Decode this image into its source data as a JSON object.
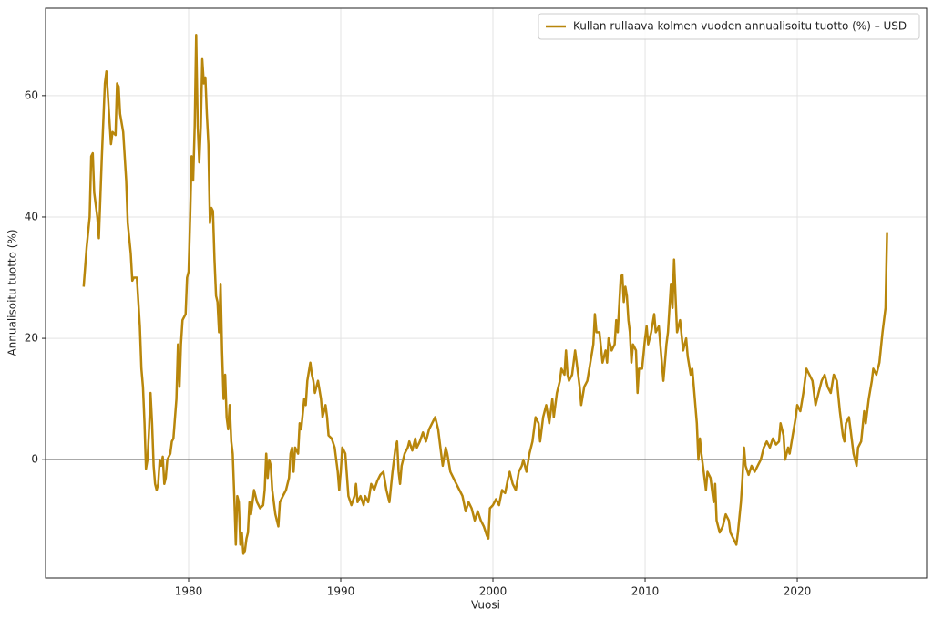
{
  "chart_data": {
    "type": "line",
    "xlabel": "Vuosi",
    "ylabel": "Annualisoitu tuotto (%)",
    "xlim": [
      1970.6,
      2028.5
    ],
    "ylim": [
      -19.5,
      74.4
    ],
    "xticks": [
      1980,
      1990,
      2000,
      2010,
      2020
    ],
    "yticks": [
      0,
      20,
      40,
      60
    ],
    "grid": true,
    "legend": "upper right",
    "hline": 0,
    "x": [
      1973.1,
      1973.3,
      1973.5,
      1973.6,
      1973.7,
      1973.8,
      1974.0,
      1974.1,
      1974.3,
      1974.5,
      1974.6,
      1974.8,
      1974.9,
      1975.0,
      1975.2,
      1975.3,
      1975.4,
      1975.5,
      1975.7,
      1975.9,
      1976.0,
      1976.2,
      1976.3,
      1976.4,
      1976.6,
      1976.8,
      1976.9,
      1977.0,
      1977.1,
      1977.2,
      1977.3,
      1977.4,
      1977.5,
      1977.6,
      1977.7,
      1977.8,
      1977.9,
      1978.0,
      1978.1,
      1978.2,
      1978.3,
      1978.4,
      1978.5,
      1978.6,
      1978.8,
      1978.9,
      1979.0,
      1979.2,
      1979.3,
      1979.4,
      1979.5,
      1979.6,
      1979.7,
      1979.8,
      1979.9,
      1980.0,
      1980.1,
      1980.2,
      1980.3,
      1980.4,
      1980.5,
      1980.6,
      1980.7,
      1980.8,
      1980.9,
      1981.0,
      1981.1,
      1981.2,
      1981.3,
      1981.4,
      1981.5,
      1981.6,
      1981.7,
      1981.8,
      1981.9,
      1982.0,
      1982.1,
      1982.2,
      1982.3,
      1982.4,
      1982.5,
      1982.6,
      1982.7,
      1982.8,
      1982.9,
      1983.0,
      1983.1,
      1983.2,
      1983.3,
      1983.4,
      1983.5,
      1983.6,
      1983.7,
      1983.8,
      1983.9,
      1984.0,
      1984.1,
      1984.3,
      1984.5,
      1984.7,
      1984.9,
      1985.0,
      1985.1,
      1985.2,
      1985.3,
      1985.4,
      1985.5,
      1985.7,
      1985.9,
      1986.0,
      1986.2,
      1986.4,
      1986.6,
      1986.7,
      1986.8,
      1986.9,
      1987.0,
      1987.2,
      1987.3,
      1987.4,
      1987.6,
      1987.7,
      1987.8,
      1988.0,
      1988.1,
      1988.2,
      1988.3,
      1988.5,
      1988.7,
      1988.8,
      1989.0,
      1989.1,
      1989.2,
      1989.4,
      1989.6,
      1989.8,
      1989.9,
      1990.0,
      1990.1,
      1990.3,
      1990.5,
      1990.7,
      1990.9,
      1991.0,
      1991.1,
      1991.3,
      1991.5,
      1991.6,
      1991.8,
      1992.0,
      1992.2,
      1992.4,
      1992.6,
      1992.8,
      1993.0,
      1993.2,
      1993.4,
      1993.6,
      1993.7,
      1993.8,
      1993.9,
      1994.0,
      1994.2,
      1994.4,
      1994.5,
      1994.7,
      1994.9,
      1995.0,
      1995.2,
      1995.4,
      1995.6,
      1995.8,
      1996.0,
      1996.2,
      1996.4,
      1996.6,
      1996.7,
      1996.9,
      1997.0,
      1997.2,
      1997.4,
      1997.6,
      1997.8,
      1998.0,
      1998.2,
      1998.4,
      1998.6,
      1998.8,
      1999.0,
      1999.2,
      1999.4,
      1999.6,
      1999.7,
      1999.8,
      2000.0,
      2000.2,
      2000.4,
      2000.6,
      2000.8,
      2001.0,
      2001.1,
      2001.3,
      2001.5,
      2001.7,
      2001.9,
      2002.0,
      2002.2,
      2002.4,
      2002.6,
      2002.8,
      2003.0,
      2003.1,
      2003.3,
      2003.5,
      2003.7,
      2003.9,
      2004.0,
      2004.2,
      2004.4,
      2004.5,
      2004.7,
      2004.8,
      2004.9,
      2005.0,
      2005.2,
      2005.4,
      2005.5,
      2005.7,
      2005.8,
      2006.0,
      2006.2,
      2006.4,
      2006.6,
      2006.7,
      2006.8,
      2007.0,
      2007.2,
      2007.4,
      2007.5,
      2007.6,
      2007.8,
      2008.0,
      2008.1,
      2008.2,
      2008.4,
      2008.5,
      2008.6,
      2008.7,
      2008.8,
      2008.9,
      2009.0,
      2009.1,
      2009.2,
      2009.4,
      2009.5,
      2009.6,
      2009.8,
      2010.0,
      2010.1,
      2010.2,
      2010.4,
      2010.6,
      2010.7,
      2010.9,
      2011.0,
      2011.2,
      2011.4,
      2011.5,
      2011.7,
      2011.8,
      2011.9,
      2012.0,
      2012.1,
      2012.3,
      2012.5,
      2012.7,
      2012.8,
      2013.0,
      2013.1,
      2013.2,
      2013.4,
      2013.5,
      2013.6,
      2013.7,
      2013.8,
      2014.0,
      2014.1,
      2014.3,
      2014.5,
      2014.6,
      2014.7,
      2014.9,
      2015.1,
      2015.3,
      2015.5,
      2015.6,
      2015.8,
      2016.0,
      2016.1,
      2016.3,
      2016.4,
      2016.5,
      2016.6,
      2016.8,
      2017.0,
      2017.2,
      2017.4,
      2017.6,
      2017.8,
      2018.0,
      2018.2,
      2018.4,
      2018.6,
      2018.8,
      2018.9,
      2019.1,
      2019.2,
      2019.4,
      2019.5,
      2019.7,
      2019.9,
      2020.0,
      2020.2,
      2020.4,
      2020.6,
      2020.8,
      2021.0,
      2021.2,
      2021.4,
      2021.6,
      2021.8,
      2022.0,
      2022.2,
      2022.4,
      2022.6,
      2022.8,
      2023.0,
      2023.1,
      2023.2,
      2023.4,
      2023.5,
      2023.7,
      2023.9,
      2024.0,
      2024.2,
      2024.4,
      2024.5,
      2024.7,
      2024.9,
      2025.0,
      2025.2,
      2025.4,
      2025.6,
      2025.8,
      2025.9
    ],
    "series": [
      {
        "name": "Kullan rullaava kolmen vuoden annualisoitu tuotto (%) – USD",
        "color": "#b8860b",
        "values": [
          28.5,
          35,
          40,
          50,
          50.5,
          44,
          40,
          36.5,
          50,
          62,
          64,
          56,
          52,
          54,
          53.5,
          62,
          61.5,
          57,
          54,
          46,
          39,
          34,
          29.5,
          30,
          30,
          22,
          15,
          12,
          6,
          -1.5,
          0,
          5,
          11,
          6,
          -1,
          -4,
          -5,
          -4,
          0,
          -1,
          0.5,
          -4,
          -3,
          0,
          1,
          3,
          3.5,
          10,
          19,
          12,
          19,
          23,
          23.5,
          24,
          30,
          31,
          40,
          50,
          46,
          55,
          70,
          55,
          49,
          55,
          66,
          62,
          63,
          57,
          52,
          39,
          41.5,
          41,
          33,
          27,
          26,
          21,
          29,
          18,
          10,
          14,
          7,
          5,
          9,
          3,
          1,
          -6,
          -14,
          -6,
          -7,
          -14,
          -12,
          -15.5,
          -15,
          -13,
          -12,
          -7,
          -9,
          -5,
          -7,
          -8,
          -7.5,
          -5,
          1,
          -3,
          0,
          -1,
          -5,
          -9,
          -11,
          -7,
          -6,
          -5,
          -3,
          1,
          2,
          -2,
          2,
          1,
          6,
          5,
          10,
          9,
          13,
          16,
          14,
          13,
          11,
          13,
          10,
          7,
          9,
          7,
          4,
          3.5,
          2,
          -2,
          -5,
          -2,
          2,
          1,
          -6,
          -7.5,
          -6,
          -4,
          -7,
          -6,
          -7.5,
          -6,
          -7,
          -4,
          -5,
          -3.5,
          -2.5,
          -2,
          -5,
          -7,
          -2,
          2,
          3,
          -2,
          -4,
          -1,
          1,
          2,
          3,
          1.5,
          3.5,
          2,
          3,
          4.5,
          3,
          5,
          6,
          7,
          5,
          1,
          -1,
          2,
          1,
          -2,
          -3,
          -4,
          -5,
          -6,
          -8.5,
          -7,
          -8,
          -10,
          -8.5,
          -10,
          -11,
          -12.5,
          -13,
          -8,
          -7.5,
          -6.5,
          -7.5,
          -5,
          -5.5,
          -3,
          -2,
          -4,
          -5,
          -2,
          -1,
          0,
          -2,
          1,
          3,
          7,
          6,
          3,
          7,
          9,
          6,
          10,
          7,
          11,
          13,
          15,
          14,
          18,
          14,
          13,
          14,
          18,
          16,
          12,
          9,
          12,
          13,
          16,
          19,
          24,
          21,
          21,
          16,
          18,
          16,
          20,
          18,
          19,
          23,
          21,
          30,
          30.5,
          26,
          28.5,
          27,
          23,
          21,
          16,
          19,
          18,
          11,
          15,
          15,
          20,
          22,
          19,
          21,
          24,
          21,
          22,
          19,
          13,
          19,
          21,
          29,
          25,
          33,
          27,
          21,
          23,
          18,
          20,
          17,
          14,
          15,
          12,
          6,
          0,
          3.5,
          1,
          -1,
          -5,
          -2,
          -3,
          -7,
          -4,
          -10,
          -12,
          -11,
          -9,
          -10,
          -12,
          -13,
          -14,
          -12,
          -7,
          -3,
          2,
          -1,
          -2.5,
          -1,
          -2,
          -1,
          0,
          2,
          3,
          2,
          3.5,
          2.5,
          3,
          6,
          4,
          0,
          2,
          1,
          4,
          7,
          9,
          8,
          11,
          15,
          14,
          13,
          9,
          11,
          13,
          14,
          12,
          11,
          14,
          13,
          8,
          4,
          3,
          6,
          7,
          5,
          1,
          -1,
          2,
          3,
          8,
          6,
          10,
          13,
          15,
          14,
          16,
          21,
          25,
          37.5
        ]
      }
    ]
  }
}
